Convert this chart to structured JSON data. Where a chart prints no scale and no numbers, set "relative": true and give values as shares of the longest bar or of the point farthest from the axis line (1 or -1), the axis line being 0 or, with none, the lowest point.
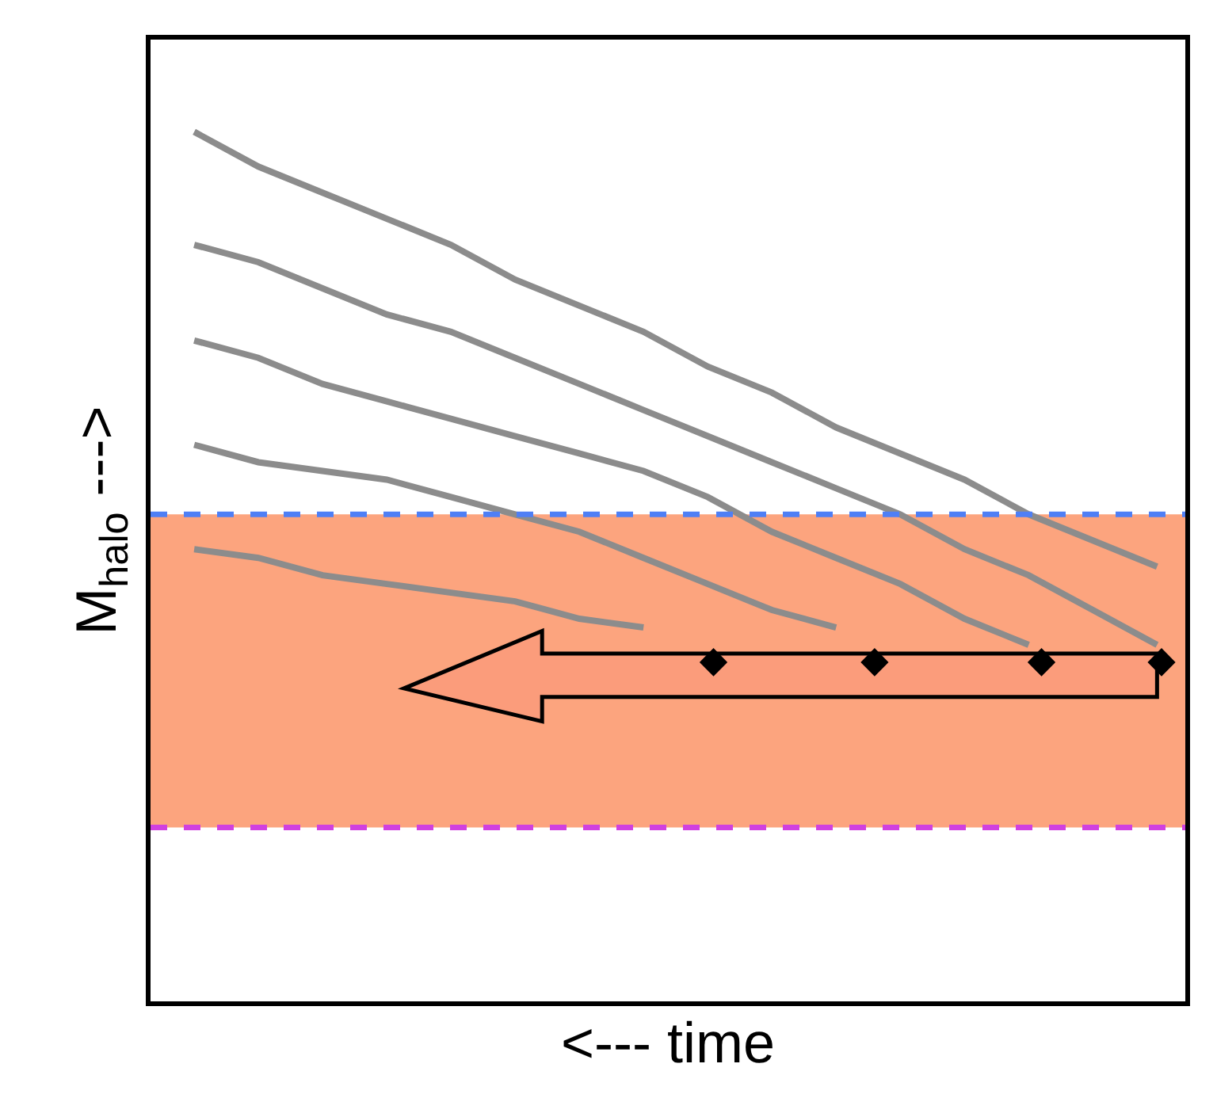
{
  "chart_data": {
    "type": "line",
    "relative": true,
    "xlabel": "<--- time",
    "ylabel": "M$_{halo}$ --->",
    "grid": false,
    "categories": [
      null,
      null,
      null,
      null,
      null,
      null,
      null,
      null,
      null,
      null,
      null,
      null,
      null,
      null,
      null,
      null
    ],
    "series": [
      {
        "color": "#8c8c8c",
        "values": [
          1.0,
          0.96,
          0.93,
          0.9,
          0.87,
          0.83,
          0.8,
          0.77,
          0.73,
          0.7,
          0.66,
          0.63,
          0.6,
          0.56,
          0.53,
          0.5
        ]
      },
      {
        "color": "#8c8c8c",
        "values": [
          0.87,
          0.85,
          0.82,
          0.79,
          0.77,
          0.74,
          0.71,
          0.68,
          0.65,
          0.62,
          0.59,
          0.56,
          0.52,
          0.49,
          0.45,
          0.41
        ]
      },
      {
        "color": "#8c8c8c",
        "values": [
          0.76,
          0.74,
          0.71,
          0.69,
          0.67,
          0.65,
          0.63,
          0.61,
          0.58,
          0.54,
          0.51,
          0.48,
          0.44,
          0.41,
          null,
          null
        ]
      },
      {
        "color": "#8c8c8c",
        "values": [
          0.64,
          0.62,
          0.61,
          0.6,
          0.58,
          0.56,
          0.54,
          0.51,
          0.48,
          0.45,
          0.43,
          null,
          null,
          null,
          null,
          null
        ]
      },
      {
        "color": "#8c8c8c",
        "values": [
          0.52,
          0.51,
          0.49,
          0.48,
          0.47,
          0.46,
          0.44,
          0.43,
          null,
          null,
          null,
          null,
          null,
          null,
          null,
          null
        ]
      }
    ],
    "bands": [
      {
        "axis": "y",
        "from": 0.2,
        "to": 0.56,
        "color": "#fca47e"
      }
    ],
    "ref_lines": [
      {
        "axis": "y",
        "value": 0.56,
        "color": "#4f7ff5",
        "line_style": "dashed"
      },
      {
        "axis": "y",
        "value": 0.2,
        "color": "#d040e0",
        "line_style": "dashed"
      }
    ]
  }
}
